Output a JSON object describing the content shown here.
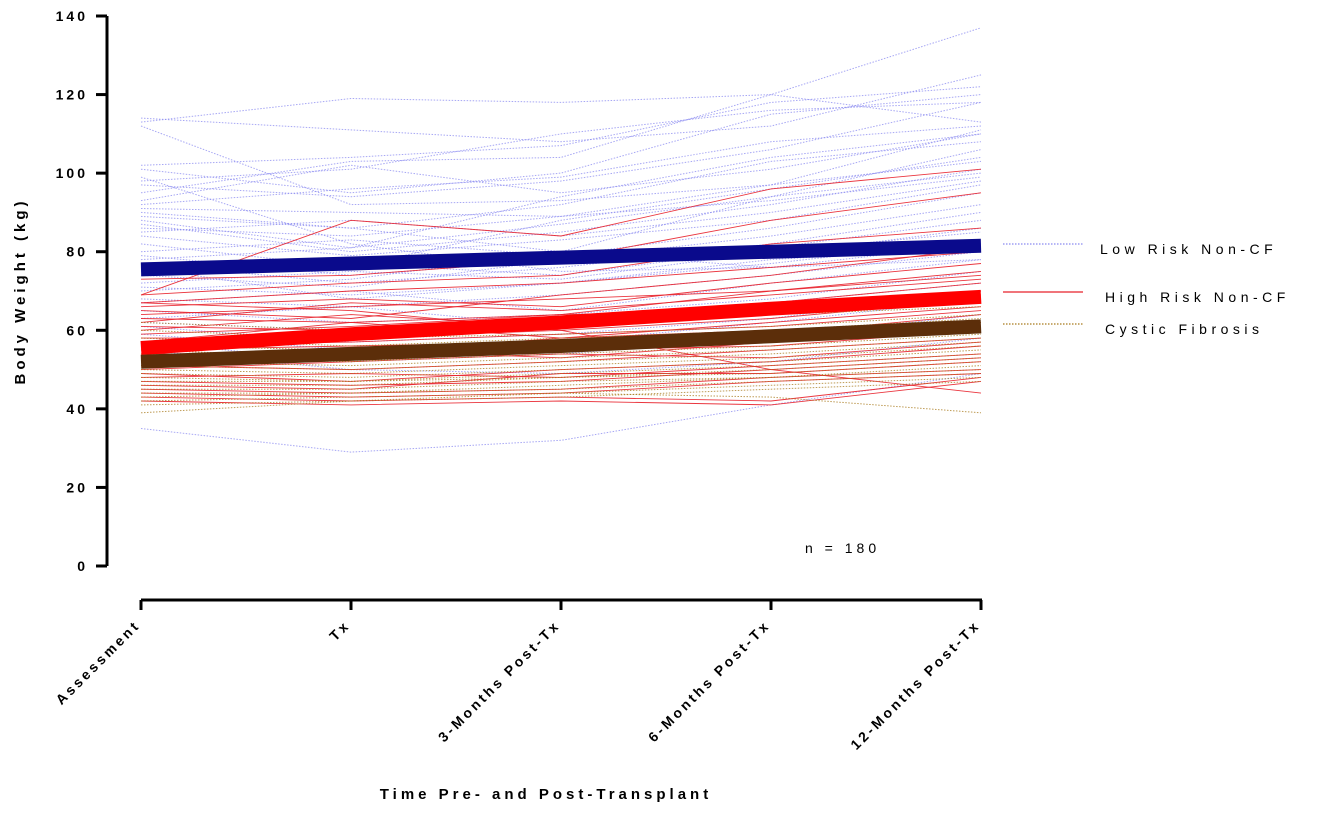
{
  "chart_data": {
    "type": "line",
    "xlabel": "Time Pre- and Post-Transplant",
    "ylabel": "Body Weight (kg)",
    "ylim": [
      0,
      140
    ],
    "yticks": [
      0,
      20,
      40,
      60,
      80,
      100,
      120,
      140
    ],
    "categories": [
      "Assessment",
      "Tx",
      "3-Months Post-Tx",
      "6-Months Post-Tx",
      "12-Months Post-Tx"
    ],
    "annotation": "n = 180",
    "legend_position": "right",
    "series": [
      {
        "name": "Low Risk Non-CF",
        "color": "#0a0a8c",
        "thin_color": "#8a8af0",
        "style": "dotted",
        "mean": [
          75.5,
          77,
          78.5,
          80,
          81.5
        ]
      },
      {
        "name": "High Risk Non-CF",
        "color": "#ff0000",
        "thin_color": "#e8202a",
        "style": "solid",
        "mean": [
          55.5,
          59,
          62,
          65.5,
          68.5
        ]
      },
      {
        "name": "Cystic Fibrosis",
        "color": "#5c2e0a",
        "thin_color": "#a87a1c",
        "style": "dotted",
        "mean": [
          52,
          54,
          56,
          58.5,
          61
        ]
      }
    ],
    "individual_lines": {
      "Low Risk Non-CF": [
        [
          113,
          119,
          118,
          120,
          137
        ],
        [
          114,
          111,
          108,
          112,
          125
        ],
        [
          102,
          104,
          107,
          118,
          122
        ],
        [
          101,
          95,
          100,
          115,
          120
        ],
        [
          97,
          94,
          98,
          106,
          118
        ],
        [
          95,
          103,
          104,
          120,
          113
        ],
        [
          93,
          102,
          95,
          101,
          110
        ],
        [
          91,
          90,
          89,
          97,
          111
        ],
        [
          90,
          86,
          92,
          103,
          108
        ],
        [
          89,
          86,
          80,
          94,
          106
        ],
        [
          88,
          81,
          94,
          104,
          110
        ],
        [
          87,
          80,
          85,
          92,
          101
        ],
        [
          85,
          88,
          84,
          90,
          98
        ],
        [
          84,
          79,
          83,
          88,
          97
        ],
        [
          82,
          76,
          88,
          96,
          104
        ],
        [
          80,
          83,
          79,
          86,
          95
        ],
        [
          79,
          74,
          78,
          84,
          92
        ],
        [
          78,
          81,
          87,
          94,
          100
        ],
        [
          77,
          72,
          76,
          82,
          90
        ],
        [
          75,
          77,
          74,
          81,
          88
        ],
        [
          74,
          71,
          78,
          79,
          86
        ],
        [
          72,
          75,
          73,
          80,
          85
        ],
        [
          71,
          69,
          72,
          77,
          83
        ],
        [
          70,
          73,
          80,
          76,
          82
        ],
        [
          68,
          66,
          69,
          74,
          80
        ],
        [
          67,
          70,
          65,
          72,
          78
        ],
        [
          65,
          62,
          64,
          68,
          75
        ],
        [
          63,
          66,
          61,
          67,
          72
        ],
        [
          61,
          57,
          59,
          63,
          70
        ],
        [
          59,
          55,
          57,
          62,
          68
        ],
        [
          57,
          52,
          54,
          58,
          64
        ],
        [
          55,
          50,
          49,
          52,
          58
        ],
        [
          35,
          29,
          32,
          41,
          49
        ],
        [
          112,
          92,
          93,
          97,
          103
        ],
        [
          99,
          82,
          75,
          76,
          78
        ],
        [
          92,
          96,
          99,
          108,
          112
        ],
        [
          98,
          101,
          110,
          116,
          118
        ],
        [
          86,
          84,
          89,
          93,
          99
        ],
        [
          76,
          68,
          72,
          78,
          81
        ],
        [
          62,
          60,
          63,
          66,
          70
        ]
      ],
      "High Risk Non-CF": [
        [
          69,
          88,
          84,
          96,
          101
        ],
        [
          73,
          74,
          78,
          88,
          95
        ],
        [
          69,
          72,
          74,
          82,
          86
        ],
        [
          67,
          70,
          72,
          76,
          80
        ],
        [
          66,
          68,
          66,
          72,
          77
        ],
        [
          65,
          63,
          69,
          74,
          81
        ],
        [
          64,
          66,
          68,
          70,
          75
        ],
        [
          63,
          62,
          64,
          70,
          74
        ],
        [
          62,
          67,
          65,
          69,
          73
        ],
        [
          61,
          60,
          62,
          67,
          72
        ],
        [
          60,
          64,
          61,
          66,
          70
        ],
        [
          59,
          61,
          64,
          65,
          69
        ],
        [
          58,
          58,
          60,
          63,
          68
        ],
        [
          57,
          62,
          58,
          62,
          66
        ],
        [
          56,
          57,
          59,
          61,
          65
        ],
        [
          55,
          56,
          57,
          59,
          64
        ],
        [
          54,
          54,
          58,
          60,
          62
        ],
        [
          53,
          55,
          53,
          57,
          61
        ],
        [
          52,
          53,
          55,
          56,
          60
        ],
        [
          51,
          50,
          52,
          55,
          58
        ],
        [
          50,
          52,
          54,
          53,
          57
        ],
        [
          49,
          47,
          50,
          52,
          56
        ],
        [
          48,
          49,
          48,
          51,
          54
        ],
        [
          47,
          46,
          47,
          50,
          53
        ],
        [
          46,
          45,
          49,
          49,
          52
        ],
        [
          45,
          44,
          45,
          48,
          50
        ],
        [
          44,
          43,
          44,
          47,
          49
        ],
        [
          43,
          42,
          43,
          42,
          48
        ],
        [
          42,
          41,
          42,
          41,
          47
        ],
        [
          67,
          65,
          60,
          50,
          44
        ]
      ],
      "Cystic Fibrosis": [
        [
          62,
          60,
          62,
          64,
          66
        ],
        [
          58,
          56,
          58,
          60,
          63
        ],
        [
          56,
          55,
          57,
          59,
          62
        ],
        [
          55,
          53,
          56,
          58,
          61
        ],
        [
          54,
          52,
          55,
          57,
          60
        ],
        [
          53,
          52,
          54,
          56,
          59
        ],
        [
          52,
          51,
          53,
          55,
          58
        ],
        [
          51,
          50,
          52,
          54,
          57
        ],
        [
          50,
          49,
          51,
          53,
          56
        ],
        [
          49,
          48,
          50,
          52,
          55
        ],
        [
          48,
          47,
          49,
          51,
          54
        ],
        [
          47,
          47,
          48,
          50,
          53
        ],
        [
          46,
          46,
          48,
          49,
          52
        ],
        [
          45,
          45,
          47,
          48,
          51
        ],
        [
          44,
          44,
          46,
          48,
          50
        ],
        [
          43,
          44,
          45,
          47,
          49
        ],
        [
          42,
          43,
          44,
          46,
          48
        ],
        [
          41,
          42,
          43,
          45,
          47
        ],
        [
          39,
          42,
          44,
          43,
          39
        ],
        [
          60,
          58,
          59,
          61,
          64
        ]
      ]
    }
  }
}
